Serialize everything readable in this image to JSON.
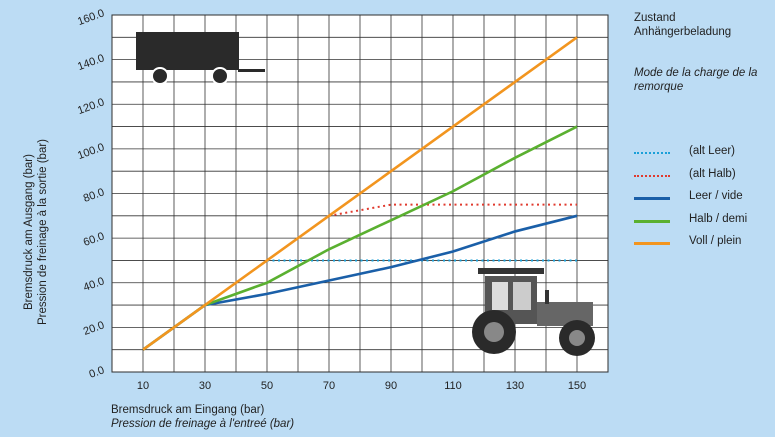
{
  "chart_data": {
    "type": "line",
    "xlabel": "Bremsdruck am Eingang (bar)",
    "xlabel2": "Pression de freinage à l'entreé (bar)",
    "ylabel": "Bremsdruck am Ausgang (bar)",
    "ylabel2": "Pression de freinage à la sortie (bar)",
    "xlim": [
      0,
      160
    ],
    "ylim": [
      0,
      160
    ],
    "x_ticks": [
      "10",
      "30",
      "50",
      "70",
      "90",
      "110",
      "130",
      "150"
    ],
    "y_ticks": [
      "0.0",
      "20.0",
      "40.0",
      "60.0",
      "80.0",
      "100.0",
      "120.0",
      "140.0",
      "160.0"
    ],
    "grid": true,
    "legend_position": "right",
    "legend_title": "Zustand Anhängerbeladung",
    "legend_subtitle": "Mode de la charge de la remorque",
    "series": [
      {
        "name": "(alt Leer)",
        "style": "dotted",
        "color": "#1aa0d8",
        "points": [
          [
            50,
            50
          ],
          [
            150,
            50
          ]
        ]
      },
      {
        "name": "(alt Halb)",
        "style": "dotted",
        "color": "#e03a2e",
        "points": [
          [
            70,
            70
          ],
          [
            90,
            75
          ],
          [
            150,
            75
          ]
        ]
      },
      {
        "name": "Leer / vide",
        "style": "solid",
        "color": "#1a5fa8",
        "points": [
          [
            10,
            10
          ],
          [
            30,
            30
          ],
          [
            50,
            35
          ],
          [
            70,
            41
          ],
          [
            90,
            47
          ],
          [
            110,
            54
          ],
          [
            130,
            63
          ],
          [
            150,
            70
          ]
        ]
      },
      {
        "name": "Halb / demi",
        "style": "solid",
        "color": "#5ab030",
        "points": [
          [
            10,
            10
          ],
          [
            30,
            30
          ],
          [
            50,
            40
          ],
          [
            70,
            55
          ],
          [
            90,
            68
          ],
          [
            110,
            81
          ],
          [
            130,
            96
          ],
          [
            150,
            110
          ]
        ]
      },
      {
        "name": "Voll / plein",
        "style": "solid",
        "color": "#f2951f",
        "points": [
          [
            10,
            10
          ],
          [
            30,
            30
          ],
          [
            50,
            50
          ],
          [
            70,
            70
          ],
          [
            90,
            90
          ],
          [
            110,
            110
          ],
          [
            130,
            130
          ],
          [
            150,
            150
          ]
        ]
      }
    ]
  },
  "icons": {
    "trailer": "trailer-icon",
    "tractor": "tractor-icon"
  }
}
